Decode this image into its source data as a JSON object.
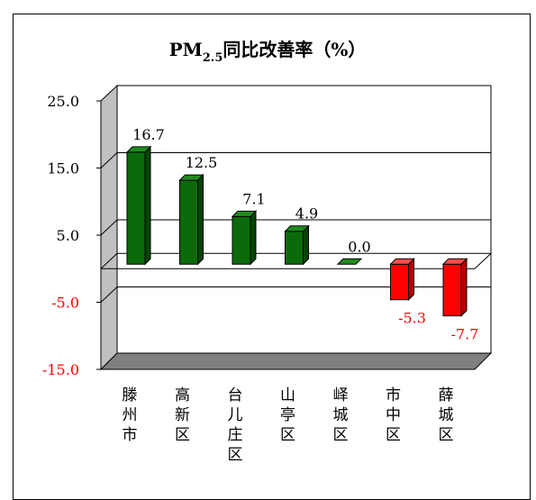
{
  "chart_data": {
    "type": "bar",
    "title_main": "PM",
    "title_sub": "2.5",
    "title_rest": "同比改善率（%）",
    "categories": [
      "滕州市",
      "高新区",
      "台儿庄区",
      "山亭区",
      "峄城区",
      "市中区",
      "薛城区"
    ],
    "values": [
      16.7,
      12.5,
      7.1,
      4.9,
      0.0,
      -5.3,
      -7.7
    ],
    "value_labels": [
      "16.7",
      "12.5",
      "7.1",
      "4.9",
      "0.0",
      "-5.3",
      "-7.7"
    ],
    "y_ticks": [
      25.0,
      15.0,
      5.0,
      -5.0,
      -15.0
    ],
    "y_tick_labels": [
      "25.0",
      "15.0",
      "5.0",
      "-5.0",
      "-15.0"
    ],
    "ylim": [
      -15,
      25
    ],
    "grid": true,
    "legend": "none",
    "colors": {
      "positive": "#0b6b0b",
      "positive_side": "#064406",
      "positive_top": "#1f8c1f",
      "negative": "#ff0000",
      "negative_side": "#b30000",
      "negative_top": "#ff4d4d",
      "negative_label": "#ff0000",
      "wall": "#c0c0c0",
      "floor": "#808080"
    }
  }
}
